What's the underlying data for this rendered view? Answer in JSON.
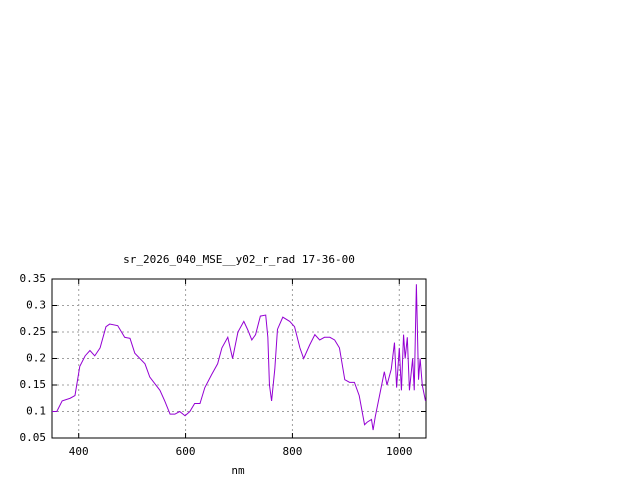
{
  "chart_data": {
    "type": "line",
    "title": "sr_2026_040_MSE__y02_r_rad 17-36-00",
    "x_label": "nm",
    "xlim": [
      350,
      1050
    ],
    "xticks": [
      400,
      600,
      800,
      1000
    ],
    "ylim": [
      0.05,
      0.35
    ],
    "yticks": [
      0.05,
      0.1,
      0.15,
      0.2,
      0.25,
      0.3,
      0.35
    ],
    "grid": true,
    "series": [
      {
        "color": "#9400d3",
        "x": [
          350,
          359,
          369,
          384,
          393,
          402,
          412,
          421,
          430,
          440,
          451,
          458,
          473,
          486,
          496,
          505,
          524,
          533,
          552,
          561,
          571,
          580,
          589,
          599,
          608,
          617,
          627,
          636,
          649,
          660,
          668,
          679,
          688,
          698,
          709,
          716,
          724,
          731,
          740,
          750,
          754,
          757,
          761,
          767,
          772,
          782,
          795,
          804,
          814,
          821,
          832,
          842,
          851,
          860,
          870,
          879,
          888,
          898,
          907,
          916,
          925,
          935,
          940,
          948,
          951,
          955,
          963,
          972,
          977,
          985,
          991,
          995,
          1000,
          1004,
          1008,
          1011,
          1015,
          1019,
          1025,
          1028,
          1032,
          1036,
          1039,
          1043,
          1049
        ],
        "values": [
          0.1,
          0.1,
          0.12,
          0.125,
          0.13,
          0.185,
          0.205,
          0.215,
          0.205,
          0.22,
          0.26,
          0.265,
          0.262,
          0.24,
          0.238,
          0.21,
          0.19,
          0.165,
          0.14,
          0.12,
          0.095,
          0.095,
          0.1,
          0.092,
          0.1,
          0.115,
          0.115,
          0.145,
          0.17,
          0.19,
          0.22,
          0.24,
          0.2,
          0.25,
          0.27,
          0.255,
          0.235,
          0.245,
          0.28,
          0.282,
          0.24,
          0.15,
          0.12,
          0.18,
          0.255,
          0.278,
          0.27,
          0.26,
          0.22,
          0.2,
          0.225,
          0.245,
          0.235,
          0.24,
          0.24,
          0.235,
          0.22,
          0.16,
          0.155,
          0.155,
          0.13,
          0.075,
          0.08,
          0.085,
          0.065,
          0.09,
          0.13,
          0.175,
          0.15,
          0.18,
          0.23,
          0.145,
          0.22,
          0.14,
          0.245,
          0.2,
          0.24,
          0.14,
          0.2,
          0.14,
          0.34,
          0.16,
          0.2,
          0.15,
          0.12
        ]
      }
    ]
  }
}
